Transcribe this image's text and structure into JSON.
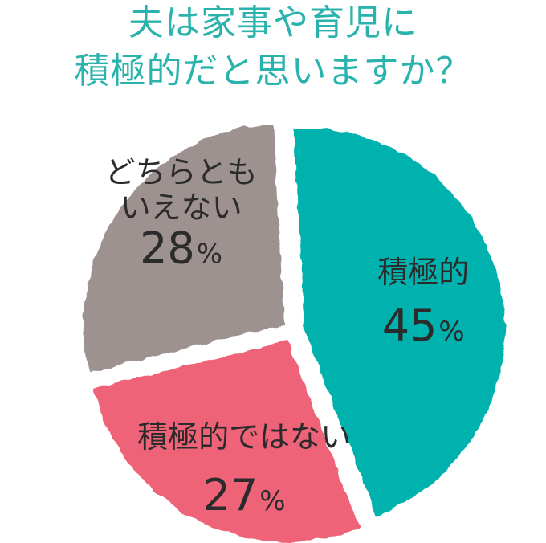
{
  "title_lines": [
    "夫は家事や育児に",
    "積極的だと思いますか？"
  ],
  "colors": {
    "title": "#2ab3ad"
  },
  "chart_data": {
    "type": "pie",
    "title": "夫は家事や育児に積極的だと思いますか？",
    "unit": "%",
    "slices": [
      {
        "label": "積極的",
        "label_lines": [
          "積極的"
        ],
        "value": 45,
        "color": "#00b2ad"
      },
      {
        "label": "積極的ではない",
        "label_lines": [
          "積極的ではない"
        ],
        "value": 27,
        "color": "#ef6479"
      },
      {
        "label": "どちらともいえない",
        "label_lines": [
          "どちらとも",
          "いえない"
        ],
        "value": 28,
        "color": "#9d9290"
      }
    ]
  }
}
